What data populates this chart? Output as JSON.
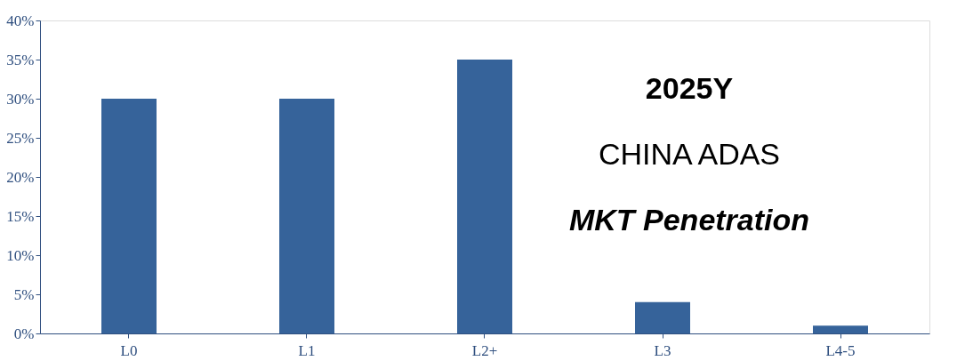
{
  "chart_data": {
    "type": "bar",
    "categories": [
      "L0",
      "L1",
      "L2+",
      "L3",
      "L4-5"
    ],
    "values": [
      30,
      30,
      35,
      4,
      1
    ],
    "color": "#36639a",
    "ylim": [
      0,
      40
    ],
    "yticks": [
      {
        "value": 0,
        "label": "0%"
      },
      {
        "value": 5,
        "label": "5%"
      },
      {
        "value": 10,
        "label": "10%"
      },
      {
        "value": 15,
        "label": "15%"
      },
      {
        "value": 20,
        "label": "20%"
      },
      {
        "value": 25,
        "label": "25%"
      },
      {
        "value": 30,
        "label": "30%"
      },
      {
        "value": 35,
        "label": "35%"
      },
      {
        "value": 40,
        "label": "40%"
      }
    ],
    "grid": false,
    "annotations": [
      "2025Y",
      "CHINA ADAS",
      "MKT Penetration"
    ]
  }
}
